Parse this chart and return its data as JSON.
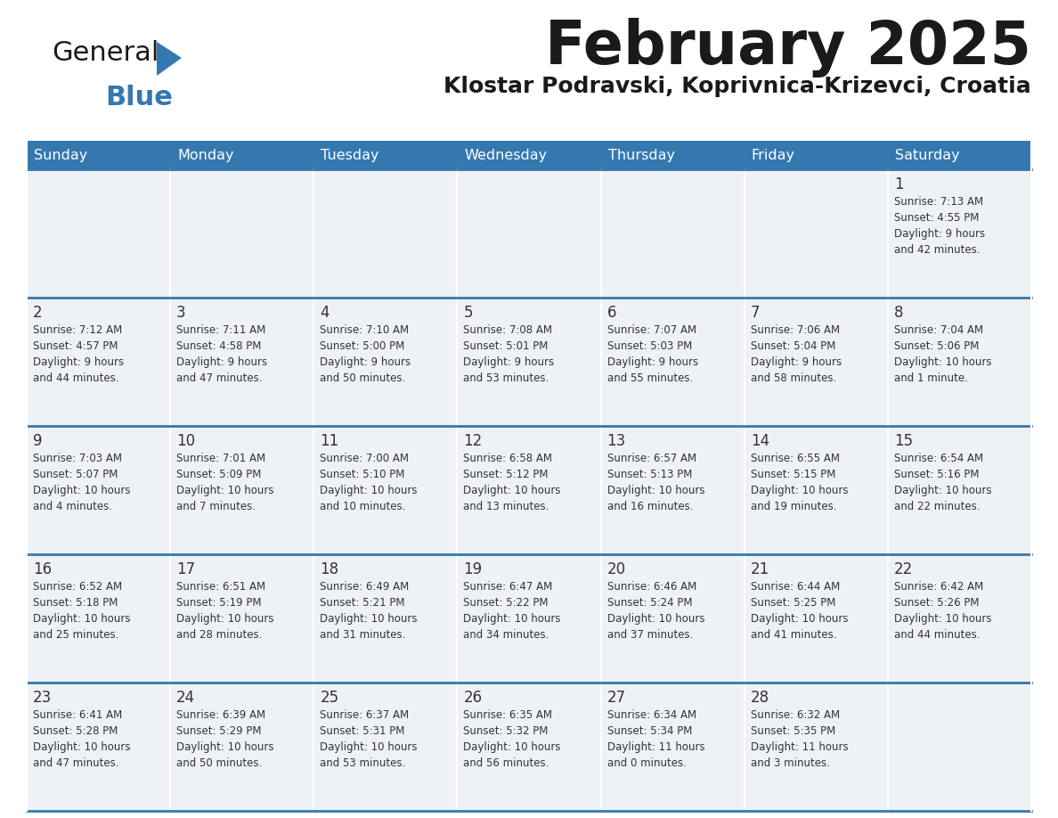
{
  "title": "February 2025",
  "subtitle": "Klostar Podravski, Koprivnica-Krizevci, Croatia",
  "header_color": "#3578b0",
  "header_text_color": "#ffffff",
  "cell_bg_color": "#eef2f7",
  "divider_color": "#3578b0",
  "text_color": "#333333",
  "days_of_week": [
    "Sunday",
    "Monday",
    "Tuesday",
    "Wednesday",
    "Thursday",
    "Friday",
    "Saturday"
  ],
  "weeks": [
    [
      {
        "day": null,
        "info": null
      },
      {
        "day": null,
        "info": null
      },
      {
        "day": null,
        "info": null
      },
      {
        "day": null,
        "info": null
      },
      {
        "day": null,
        "info": null
      },
      {
        "day": null,
        "info": null
      },
      {
        "day": 1,
        "info": "Sunrise: 7:13 AM\nSunset: 4:55 PM\nDaylight: 9 hours\nand 42 minutes."
      }
    ],
    [
      {
        "day": 2,
        "info": "Sunrise: 7:12 AM\nSunset: 4:57 PM\nDaylight: 9 hours\nand 44 minutes."
      },
      {
        "day": 3,
        "info": "Sunrise: 7:11 AM\nSunset: 4:58 PM\nDaylight: 9 hours\nand 47 minutes."
      },
      {
        "day": 4,
        "info": "Sunrise: 7:10 AM\nSunset: 5:00 PM\nDaylight: 9 hours\nand 50 minutes."
      },
      {
        "day": 5,
        "info": "Sunrise: 7:08 AM\nSunset: 5:01 PM\nDaylight: 9 hours\nand 53 minutes."
      },
      {
        "day": 6,
        "info": "Sunrise: 7:07 AM\nSunset: 5:03 PM\nDaylight: 9 hours\nand 55 minutes."
      },
      {
        "day": 7,
        "info": "Sunrise: 7:06 AM\nSunset: 5:04 PM\nDaylight: 9 hours\nand 58 minutes."
      },
      {
        "day": 8,
        "info": "Sunrise: 7:04 AM\nSunset: 5:06 PM\nDaylight: 10 hours\nand 1 minute."
      }
    ],
    [
      {
        "day": 9,
        "info": "Sunrise: 7:03 AM\nSunset: 5:07 PM\nDaylight: 10 hours\nand 4 minutes."
      },
      {
        "day": 10,
        "info": "Sunrise: 7:01 AM\nSunset: 5:09 PM\nDaylight: 10 hours\nand 7 minutes."
      },
      {
        "day": 11,
        "info": "Sunrise: 7:00 AM\nSunset: 5:10 PM\nDaylight: 10 hours\nand 10 minutes."
      },
      {
        "day": 12,
        "info": "Sunrise: 6:58 AM\nSunset: 5:12 PM\nDaylight: 10 hours\nand 13 minutes."
      },
      {
        "day": 13,
        "info": "Sunrise: 6:57 AM\nSunset: 5:13 PM\nDaylight: 10 hours\nand 16 minutes."
      },
      {
        "day": 14,
        "info": "Sunrise: 6:55 AM\nSunset: 5:15 PM\nDaylight: 10 hours\nand 19 minutes."
      },
      {
        "day": 15,
        "info": "Sunrise: 6:54 AM\nSunset: 5:16 PM\nDaylight: 10 hours\nand 22 minutes."
      }
    ],
    [
      {
        "day": 16,
        "info": "Sunrise: 6:52 AM\nSunset: 5:18 PM\nDaylight: 10 hours\nand 25 minutes."
      },
      {
        "day": 17,
        "info": "Sunrise: 6:51 AM\nSunset: 5:19 PM\nDaylight: 10 hours\nand 28 minutes."
      },
      {
        "day": 18,
        "info": "Sunrise: 6:49 AM\nSunset: 5:21 PM\nDaylight: 10 hours\nand 31 minutes."
      },
      {
        "day": 19,
        "info": "Sunrise: 6:47 AM\nSunset: 5:22 PM\nDaylight: 10 hours\nand 34 minutes."
      },
      {
        "day": 20,
        "info": "Sunrise: 6:46 AM\nSunset: 5:24 PM\nDaylight: 10 hours\nand 37 minutes."
      },
      {
        "day": 21,
        "info": "Sunrise: 6:44 AM\nSunset: 5:25 PM\nDaylight: 10 hours\nand 41 minutes."
      },
      {
        "day": 22,
        "info": "Sunrise: 6:42 AM\nSunset: 5:26 PM\nDaylight: 10 hours\nand 44 minutes."
      }
    ],
    [
      {
        "day": 23,
        "info": "Sunrise: 6:41 AM\nSunset: 5:28 PM\nDaylight: 10 hours\nand 47 minutes."
      },
      {
        "day": 24,
        "info": "Sunrise: 6:39 AM\nSunset: 5:29 PM\nDaylight: 10 hours\nand 50 minutes."
      },
      {
        "day": 25,
        "info": "Sunrise: 6:37 AM\nSunset: 5:31 PM\nDaylight: 10 hours\nand 53 minutes."
      },
      {
        "day": 26,
        "info": "Sunrise: 6:35 AM\nSunset: 5:32 PM\nDaylight: 10 hours\nand 56 minutes."
      },
      {
        "day": 27,
        "info": "Sunrise: 6:34 AM\nSunset: 5:34 PM\nDaylight: 11 hours\nand 0 minutes."
      },
      {
        "day": 28,
        "info": "Sunrise: 6:32 AM\nSunset: 5:35 PM\nDaylight: 11 hours\nand 3 minutes."
      },
      {
        "day": null,
        "info": null
      }
    ]
  ]
}
